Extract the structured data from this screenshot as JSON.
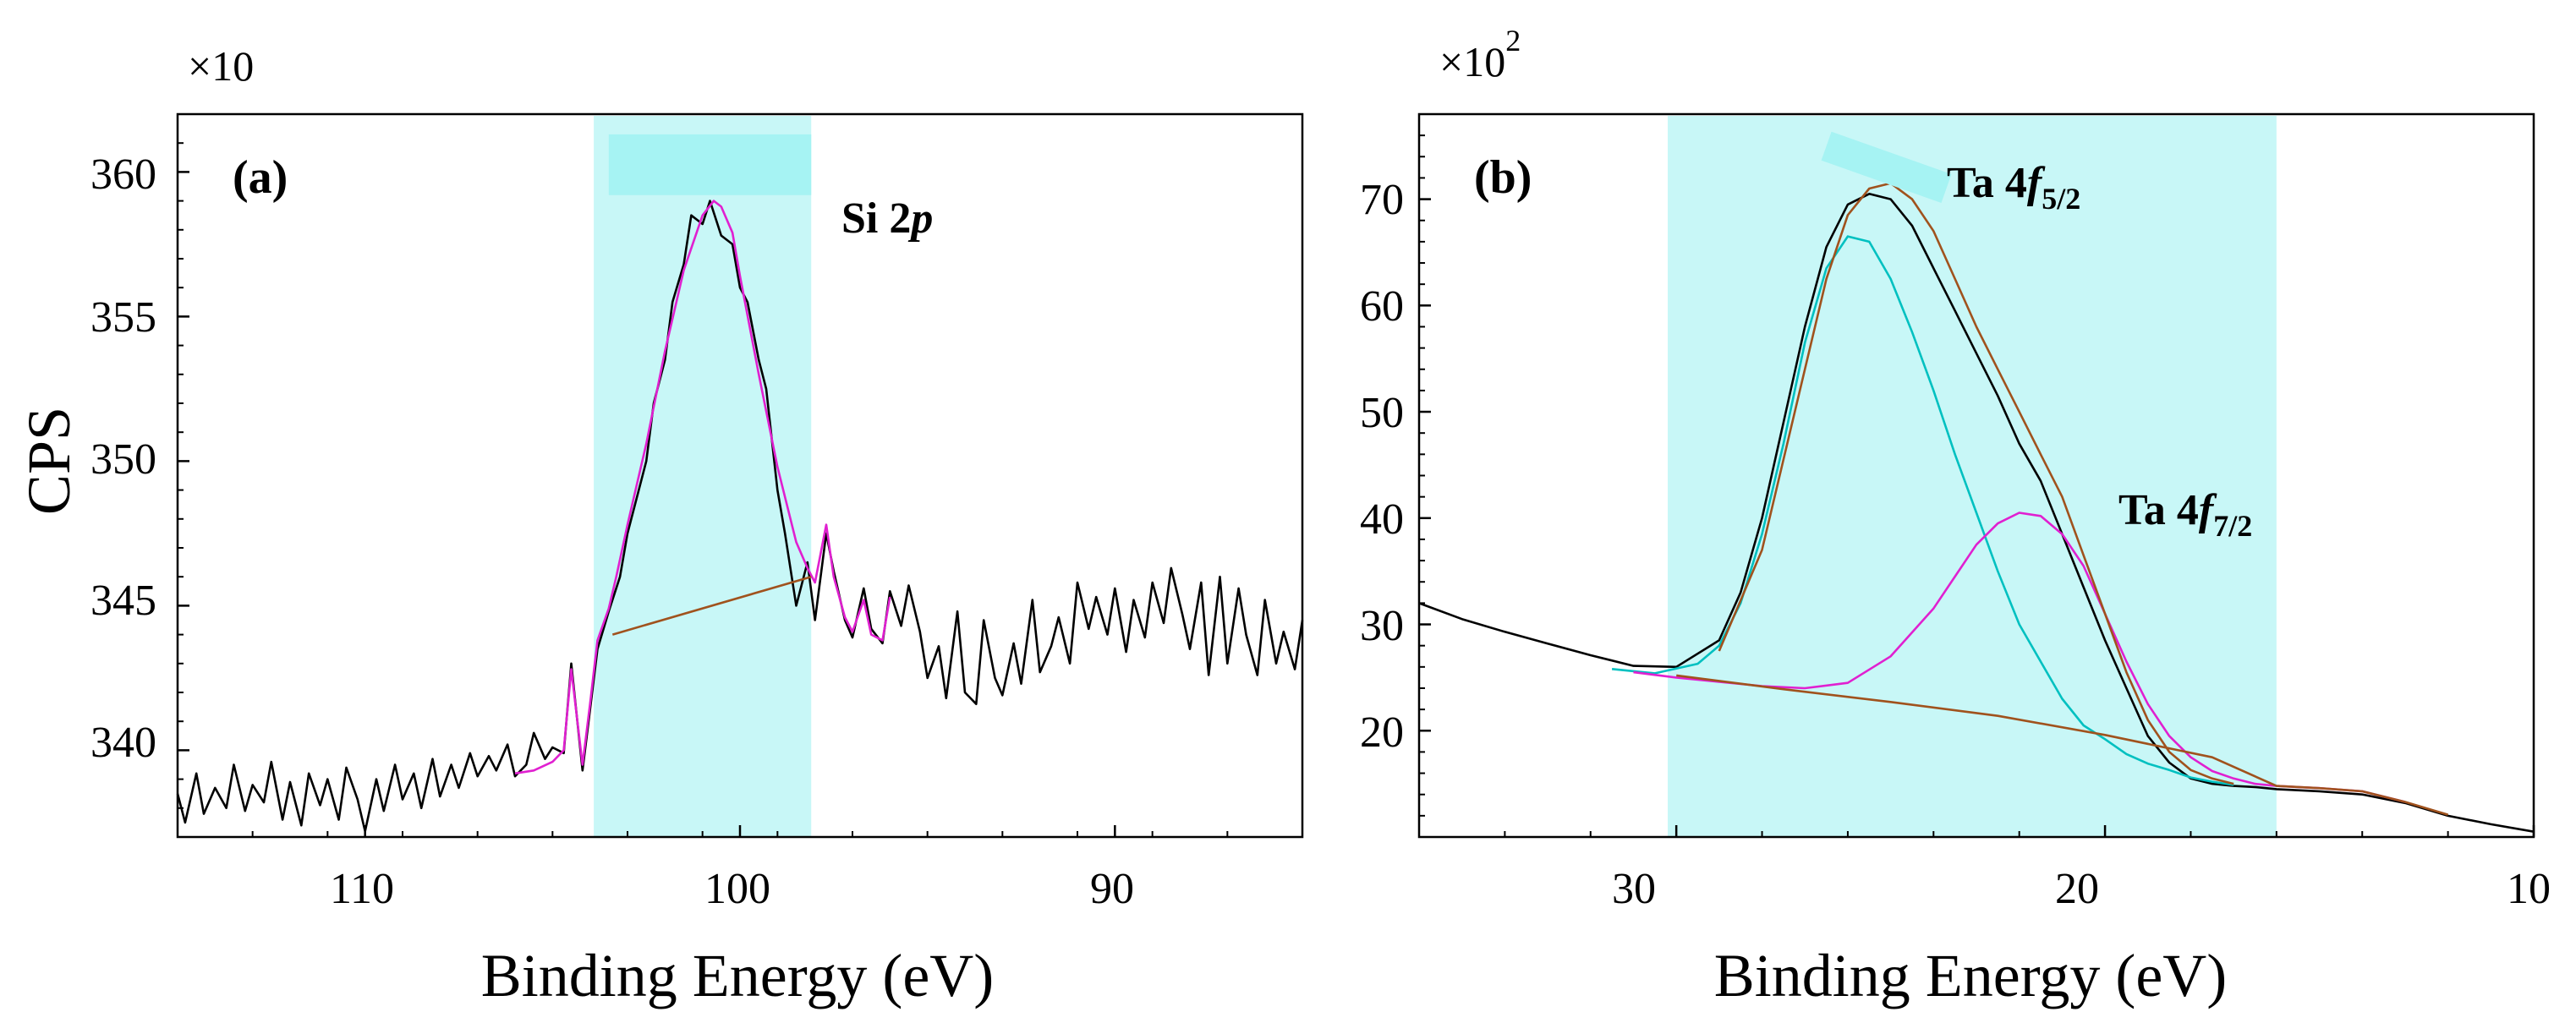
{
  "chart_data": [
    {
      "panel": "(a)",
      "type": "line",
      "ylabel": "CPS",
      "xlabel": "Binding Energy (eV)",
      "y_multiplier_base": "×10",
      "y_multiplier_exp": "",
      "xlim": [
        115,
        85
      ],
      "ylim": [
        337,
        362
      ],
      "x_ticks": [
        110,
        100,
        90
      ],
      "x_tick_labels": [
        "110",
        "100",
        "90"
      ],
      "y_ticks": [
        340,
        345,
        350,
        355,
        360
      ],
      "y_tick_labels": [
        "340",
        "345",
        "350",
        "355",
        "360"
      ],
      "region": {
        "x": [
          103.9,
          98.1
        ],
        "color": "#c8f7f7"
      },
      "marker": {
        "x": [
          103.5,
          98.1
        ],
        "y": [
          359.2,
          361.3
        ],
        "color": "#a6f3f3"
      },
      "annotations": [
        {
          "text": "Si 2",
          "italic": "p"
        }
      ],
      "series": [
        {
          "color": "#000000",
          "x": [
            115.0,
            114.8,
            114.5,
            114.3,
            114.0,
            113.7,
            113.5,
            113.2,
            113.0,
            112.7,
            112.5,
            112.2,
            112.0,
            111.7,
            111.5,
            111.2,
            111.0,
            110.7,
            110.5,
            110.2,
            110.0,
            109.7,
            109.5,
            109.2,
            109.0,
            108.7,
            108.5,
            108.2,
            108.0,
            107.7,
            107.5,
            107.2,
            107.0,
            106.7,
            106.5,
            106.2,
            106.0,
            105.7,
            105.5,
            105.2,
            105.0,
            104.7,
            104.5,
            104.2,
            104.0,
            103.8,
            103.5,
            103.2,
            103.0,
            102.8,
            102.5,
            102.3,
            102.0,
            101.8,
            101.5,
            101.3,
            101.0,
            100.8,
            100.5,
            100.2,
            100.0,
            99.8,
            99.5,
            99.3,
            99.0,
            98.8,
            98.5,
            98.2,
            98.0,
            97.7,
            97.5,
            97.2,
            97.0,
            96.7,
            96.5,
            96.2,
            96.0,
            95.7,
            95.5,
            95.2,
            95.0,
            94.7,
            94.5,
            94.2,
            94.0,
            93.7,
            93.5,
            93.2,
            93.0,
            92.7,
            92.5,
            92.2,
            92.0,
            91.7,
            91.5,
            91.2,
            91.0,
            90.7,
            90.5,
            90.2,
            90.0,
            89.7,
            89.5,
            89.2,
            89.0,
            88.7,
            88.5,
            88.2,
            88.0,
            87.7,
            87.5,
            87.2,
            87.0,
            86.7,
            86.5,
            86.2,
            86.0,
            85.7,
            85.5,
            85.2,
            85.0
          ],
          "values": [
            338.5,
            337.5,
            339.2,
            337.8,
            338.7,
            338.0,
            339.5,
            337.9,
            338.8,
            338.2,
            339.6,
            337.6,
            338.9,
            337.4,
            339.2,
            338.1,
            339.0,
            337.6,
            339.4,
            338.3,
            337.2,
            339.0,
            337.9,
            339.5,
            338.3,
            339.2,
            338.0,
            339.7,
            338.4,
            339.5,
            338.7,
            339.9,
            339.1,
            339.8,
            339.3,
            340.2,
            339.1,
            339.5,
            340.6,
            339.7,
            340.1,
            339.9,
            343.0,
            339.3,
            341.4,
            343.5,
            344.8,
            346.0,
            347.5,
            348.5,
            350.0,
            352.0,
            353.5,
            355.5,
            356.8,
            358.5,
            358.2,
            359.0,
            357.8,
            357.5,
            356.0,
            355.5,
            353.5,
            352.5,
            349.0,
            347.5,
            345.0,
            346.5,
            344.5,
            347.5,
            346.2,
            344.5,
            343.9,
            345.6,
            344.2,
            343.7,
            345.5,
            344.3,
            345.7,
            344.1,
            342.5,
            343.6,
            341.8,
            344.8,
            342.0,
            341.6,
            344.5,
            342.5,
            341.9,
            343.7,
            342.3,
            345.2,
            342.7,
            343.6,
            344.6,
            343.0,
            345.8,
            344.2,
            345.3,
            344.0,
            345.6,
            343.4,
            345.2,
            343.9,
            345.8,
            344.4,
            346.3,
            344.7,
            343.5,
            345.8,
            342.6,
            346.0,
            343.0,
            345.6,
            344.0,
            342.6,
            345.2,
            343.0,
            344.1,
            342.8,
            344.5
          ]
        },
        {
          "color": "#e020d0",
          "x": [
            106.0,
            105.5,
            105.0,
            104.7,
            104.5,
            104.2,
            104.0,
            103.8,
            103.5,
            103.3,
            103.0,
            102.5,
            102.0,
            101.5,
            101.0,
            100.7,
            100.5,
            100.2,
            100.0,
            99.5,
            99.0,
            98.5,
            98.2,
            98.0,
            97.7,
            97.5,
            97.2,
            97.0,
            96.7,
            96.5,
            96.2,
            96.0
          ],
          "values": [
            339.2,
            339.3,
            339.6,
            340.0,
            342.8,
            339.5,
            341.6,
            343.8,
            344.9,
            346.0,
            347.8,
            350.6,
            353.8,
            356.6,
            358.5,
            359.0,
            358.8,
            357.9,
            356.4,
            353.0,
            349.8,
            347.2,
            346.3,
            345.8,
            347.8,
            346.0,
            344.6,
            344.1,
            345.2,
            344.0,
            343.8,
            345.3
          ]
        },
        {
          "color": "#a0521d",
          "x": [
            103.4,
            98.1
          ],
          "values": [
            344.0,
            346.0
          ]
        }
      ]
    },
    {
      "panel": "(b)",
      "type": "line",
      "ylabel": "",
      "xlabel": "Binding Energy (eV)",
      "y_multiplier_base": "×10",
      "y_multiplier_exp": "2",
      "xlim": [
        36,
        10
      ],
      "ylim": [
        10,
        78
      ],
      "x_ticks": [
        30,
        20,
        10
      ],
      "x_tick_labels": [
        "30",
        "20",
        "10"
      ],
      "y_ticks": [
        20,
        30,
        40,
        50,
        60,
        70
      ],
      "y_tick_labels": [
        "20",
        "30",
        "40",
        "50",
        "60",
        "70"
      ],
      "region": {
        "x": [
          30.2,
          16.0
        ],
        "color": "#c8f7f7"
      },
      "marker": {
        "x": [
          26.5,
          23.7
        ],
        "y": [
          71,
          75
        ],
        "color": "#a6f3f3"
      },
      "annotations": [
        {
          "text": "Ta 4",
          "italic": "f",
          "sub": "5/2"
        },
        {
          "text": "Ta 4",
          "italic": "f",
          "sub": "7/2"
        }
      ],
      "series": [
        {
          "color": "#000000",
          "x": [
            36.0,
            35.0,
            34.0,
            33.0,
            32.0,
            31.0,
            30.0,
            29.0,
            28.5,
            28.0,
            27.5,
            27.0,
            26.5,
            26.0,
            25.5,
            25.0,
            24.5,
            24.0,
            23.5,
            23.0,
            22.5,
            22.0,
            21.5,
            21.0,
            20.5,
            20.0,
            19.5,
            19.0,
            18.5,
            18.0,
            17.5,
            17.0,
            16.5,
            16.0,
            15.0,
            14.0,
            13.0,
            12.0,
            11.0,
            10.0
          ],
          "values": [
            32.0,
            30.5,
            29.3,
            28.2,
            27.1,
            26.1,
            26.0,
            28.5,
            33.0,
            40.0,
            49.0,
            58.0,
            65.5,
            69.5,
            70.5,
            70.0,
            67.5,
            63.5,
            59.5,
            55.5,
            51.5,
            47.0,
            43.5,
            38.5,
            33.5,
            28.5,
            24.0,
            19.5,
            17.0,
            15.5,
            15.0,
            14.8,
            14.7,
            14.5,
            14.3,
            14.0,
            13.2,
            12.0,
            11.2,
            10.5
          ]
        },
        {
          "color": "#00c0c0",
          "x": [
            31.5,
            30.5,
            29.5,
            29.0,
            28.5,
            28.0,
            27.5,
            27.0,
            26.5,
            26.0,
            25.5,
            25.0,
            24.5,
            24.0,
            23.5,
            23.0,
            22.5,
            22.0,
            21.5,
            21.0,
            20.5,
            20.0,
            19.5,
            19.0,
            18.5,
            18.0,
            17.5,
            17.0
          ],
          "values": [
            25.8,
            25.4,
            26.3,
            28.0,
            32.0,
            38.5,
            47.0,
            56.5,
            63.5,
            66.5,
            66.0,
            62.5,
            57.5,
            52.0,
            46.0,
            40.5,
            35.0,
            30.0,
            26.5,
            23.0,
            20.5,
            19.2,
            17.8,
            16.9,
            16.3,
            15.6,
            15.2,
            14.9
          ]
        },
        {
          "color": "#e020d0",
          "x": [
            31.0,
            30.0,
            29.0,
            28.0,
            27.0,
            26.0,
            25.0,
            24.0,
            23.5,
            23.0,
            22.5,
            22.0,
            21.5,
            21.0,
            20.5,
            20.0,
            19.5,
            19.0,
            18.5,
            18.0,
            17.5,
            17.0,
            16.5,
            16.0,
            15.5,
            15.0,
            14.0,
            13.0
          ],
          "values": [
            25.5,
            25.0,
            24.6,
            24.2,
            24.0,
            24.5,
            27.0,
            31.5,
            34.5,
            37.5,
            39.5,
            40.5,
            40.2,
            38.5,
            35.5,
            31.0,
            26.5,
            22.5,
            19.5,
            17.5,
            16.2,
            15.5,
            15.0,
            14.8,
            14.7,
            14.6,
            14.3,
            13.3
          ]
        },
        {
          "color": "#a0521d",
          "x": [
            30.0,
            27.5,
            25.0,
            22.5,
            20.0,
            17.5,
            16.0,
            15.0,
            14.0,
            13.0,
            12.0
          ],
          "values": [
            25.2,
            23.9,
            22.7,
            21.4,
            19.6,
            17.5,
            14.8,
            14.6,
            14.3,
            13.3,
            12.1
          ]
        },
        {
          "color": "#a0521d",
          "x": [
            29.0,
            28.0,
            27.0,
            26.5,
            26.0,
            25.5,
            25.0,
            24.5,
            24.0,
            23.5,
            23.0,
            22.5,
            22.0,
            21.5,
            21.0,
            20.5,
            20.0,
            19.5,
            19.0,
            18.5,
            18.0,
            17.5,
            17.0
          ],
          "values": [
            27.5,
            37.0,
            54.0,
            62.5,
            68.5,
            71.0,
            71.5,
            70.0,
            67.0,
            62.5,
            58.0,
            54.0,
            50.0,
            46.0,
            42.0,
            36.5,
            31.0,
            25.5,
            21.0,
            18.0,
            16.3,
            15.5,
            15.0
          ]
        }
      ]
    }
  ]
}
